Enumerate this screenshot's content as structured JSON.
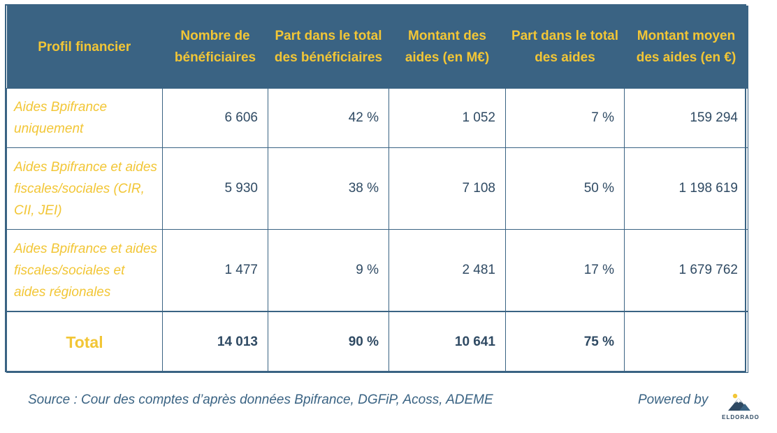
{
  "table": {
    "headers": [
      "Profil financier",
      "Nombre de bénéficiaires",
      "Part dans le total des bénéficiaires",
      "Montant des aides (en M€)",
      "Part dans le total des aides",
      "Montant moyen des aides (en €)"
    ],
    "rows": [
      {
        "profile": "Aides Bpifrance uniquement",
        "beneficiaires": "6 606",
        "part_beneficiaires": "42 %",
        "montant": "1 052",
        "part_aides": "7 %",
        "moyen": "159 294"
      },
      {
        "profile": "Aides Bpifrance et aides fiscales/sociales (CIR, CII, JEI)",
        "beneficiaires": "5 930",
        "part_beneficiaires": "38 %",
        "montant": "7 108",
        "part_aides": "50 %",
        "moyen": "1 198 619"
      },
      {
        "profile": "Aides Bpifrance et aides fiscales/sociales et aides régionales",
        "beneficiaires": "1 477",
        "part_beneficiaires": "9 %",
        "montant": "2 481",
        "part_aides": "17 %",
        "moyen": "1 679 762"
      }
    ],
    "total": {
      "label": "Total",
      "beneficiaires": "14 013",
      "part_beneficiaires": "90 %",
      "montant": "10 641",
      "part_aides": "75 %",
      "moyen": ""
    }
  },
  "footer": {
    "source": "Source : Cour des comptes d’après données Bpifrance, DGFiP, Acoss, ADEME",
    "powered_by": "Powered by",
    "logo_text": "ELDORADO"
  },
  "colors": {
    "header_bg": "#3a6383",
    "accent_yellow": "#f2c636",
    "text_dark": "#2f4a63"
  }
}
